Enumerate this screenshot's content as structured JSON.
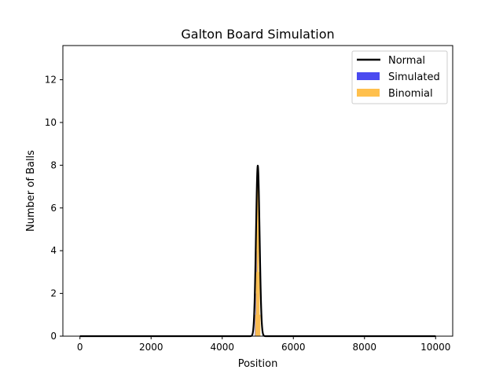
{
  "chart_data": {
    "type": "bar",
    "title": "Galton Board Simulation",
    "xlabel": "Position",
    "ylabel": "Number of Balls",
    "xlim": [
      -480,
      10480
    ],
    "ylim": [
      0,
      13.6
    ],
    "xticks": [
      0,
      2000,
      4000,
      6000,
      8000,
      10000
    ],
    "yticks": [
      0,
      2,
      4,
      6,
      8,
      10,
      12
    ],
    "grid": false,
    "legend_position": "top-right",
    "legend": [
      {
        "label": "Normal",
        "kind": "line",
        "color": "#000000"
      },
      {
        "label": "Simulated",
        "kind": "patch",
        "color": "#4a4af0"
      },
      {
        "label": "Binomial",
        "kind": "patch",
        "color": "#ffc04d"
      }
    ],
    "series": [
      {
        "name": "Simulated",
        "kind": "bar",
        "color": "#4a4af0",
        "x": [
          4930,
          4950,
          4970,
          4990,
          5010,
          5030,
          5050
        ],
        "values": [
          1,
          2,
          4,
          3,
          2,
          1,
          1
        ]
      },
      {
        "name": "Binomial",
        "kind": "bar",
        "color": "#ffc04d",
        "x": [
          4940,
          4960,
          4980,
          5000,
          5020,
          5040,
          5060
        ],
        "values": [
          1,
          3,
          6.5,
          7.8,
          6.5,
          3,
          1
        ]
      },
      {
        "name": "Normal",
        "kind": "line",
        "color": "#000000",
        "mean": 5000,
        "std": 50,
        "peak": 7.98,
        "x_range": [
          0,
          10000
        ]
      }
    ]
  }
}
